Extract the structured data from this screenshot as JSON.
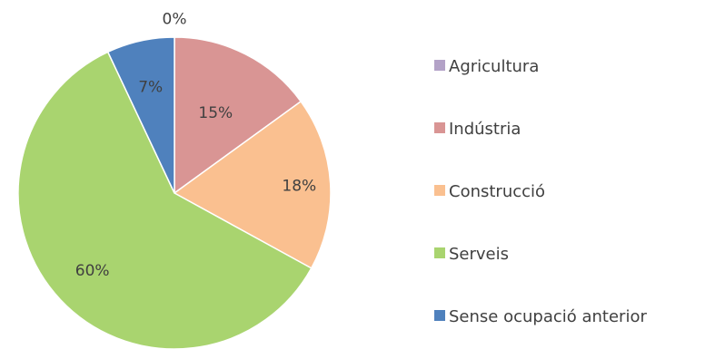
{
  "chart_data": {
    "type": "pie",
    "labels": [
      "Agricultura",
      "Indústria",
      "Construcció",
      "Serveis",
      "Sense ocupació anterior"
    ],
    "values": [
      0,
      15,
      18,
      60,
      7
    ],
    "value_labels": [
      "0%",
      "15%",
      "18%",
      "60%",
      "7%"
    ],
    "colors": [
      "#b3a2c7",
      "#d99594",
      "#fac090",
      "#a9d46f",
      "#4f81bd"
    ],
    "title": "",
    "legend": "right"
  }
}
